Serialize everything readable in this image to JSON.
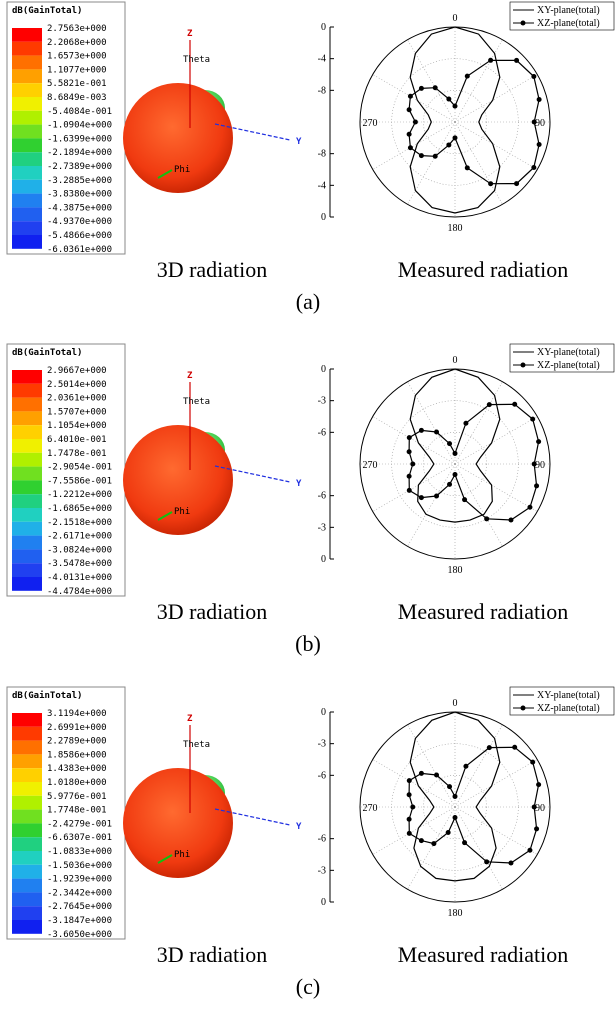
{
  "panels": [
    {
      "label": "(a)",
      "captions": [
        "3D radiation",
        "Measured radiation"
      ],
      "colorbar": {
        "title": "dB(GainTotal)",
        "labels": [
          "2.7563e+000",
          "2.2068e+000",
          "1.6573e+000",
          "1.1077e+000",
          "5.5821e-001",
          "8.6849e-003",
          "-5.4084e-001",
          "-1.0904e+000",
          "-1.6399e+000",
          "-2.1894e+000",
          "-2.7389e+000",
          "-3.2885e+000",
          "-3.8380e+000",
          "-4.3875e+000",
          "-4.9370e+000",
          "-5.4866e+000",
          "-6.0361e+000"
        ]
      },
      "axes3d": {
        "z": "Z",
        "y": "Y",
        "theta": "Theta",
        "phi": "Phi"
      }
    },
    {
      "label": "(b)",
      "captions": [
        "3D radiation",
        "Measured radiation"
      ],
      "colorbar": {
        "title": "dB(GainTotal)",
        "labels": [
          "2.9667e+000",
          "2.5014e+000",
          "2.0361e+000",
          "1.5707e+000",
          "1.1054e+000",
          "6.4010e-001",
          "1.7478e-001",
          "-2.9054e-001",
          "-7.5586e-001",
          "-1.2212e+000",
          "-1.6865e+000",
          "-2.1518e+000",
          "-2.6171e+000",
          "-3.0824e+000",
          "-3.5478e+000",
          "-4.0131e+000",
          "-4.4784e+000"
        ]
      },
      "axes3d": {
        "z": "Z",
        "y": "Y",
        "theta": "Theta",
        "phi": "Phi"
      }
    },
    {
      "label": "(c)",
      "captions": [
        "3D radiation",
        "Measured radiation"
      ],
      "colorbar": {
        "title": "dB(GainTotal)",
        "labels": [
          "3.1194e+000",
          "2.6991e+000",
          "2.2789e+000",
          "1.8586e+000",
          "1.4383e+000",
          "1.0180e+000",
          "5.9776e-001",
          "1.7748e-001",
          "-2.4279e-001",
          "-6.6307e-001",
          "-1.0833e+000",
          "-1.5036e+000",
          "-1.9239e+000",
          "-2.3442e+000",
          "-2.7645e+000",
          "-3.1847e+000",
          "-3.6050e+000"
        ]
      },
      "axes3d": {
        "z": "Z",
        "y": "Y",
        "theta": "Theta",
        "phi": "Phi"
      }
    }
  ],
  "chart_data": [
    {
      "type": "polar",
      "theta": [
        0,
        15,
        30,
        45,
        60,
        75,
        90,
        105,
        120,
        135,
        150,
        165,
        180,
        195,
        210,
        225,
        240,
        255,
        270,
        285,
        300,
        315,
        330,
        345
      ],
      "rlim": [
        -12,
        0
      ],
      "rticks": [
        0,
        -4,
        -8
      ],
      "angle_ticks": [
        0,
        90,
        180,
        270
      ],
      "series": [
        {
          "name": "XY-plane(total)",
          "color": "#000000",
          "markers": false,
          "values": [
            0,
            -0.5,
            -2,
            -4,
            -6.5,
            -8.5,
            -9,
            -8.5,
            -6.5,
            -4,
            -2,
            -0.8,
            -0.5,
            -0.8,
            -2,
            -4,
            -6.5,
            -8.5,
            -9,
            -8.5,
            -6.5,
            -4,
            -2,
            -0.5
          ]
        },
        {
          "name": "XZ-plane(total)",
          "color": "#000000",
          "markers": true,
          "values": [
            -10,
            -6,
            -3,
            -1,
            -0.5,
            -1,
            -2,
            -1,
            -0.5,
            -1,
            -3,
            -6,
            -10,
            -9,
            -7,
            -6,
            -5.5,
            -6,
            -7,
            -6,
            -5.5,
            -6,
            -7,
            -9
          ]
        }
      ]
    },
    {
      "type": "polar",
      "theta": [
        0,
        15,
        30,
        45,
        60,
        75,
        90,
        105,
        120,
        135,
        150,
        165,
        180,
        195,
        210,
        225,
        240,
        255,
        270,
        285,
        300,
        315,
        330,
        345
      ],
      "rlim": [
        -9,
        0
      ],
      "rticks": [
        0,
        -3,
        -6
      ],
      "angle_ticks": [
        0,
        90,
        180,
        270
      ],
      "series": [
        {
          "name": "XY-plane(total)",
          "color": "#000000",
          "markers": false,
          "values": [
            0,
            -0.5,
            -1.5,
            -3,
            -5,
            -6.5,
            -7,
            -6.5,
            -5,
            -4,
            -3.5,
            -3.5,
            -3.5,
            -3.5,
            -3.5,
            -4,
            -5,
            -6.5,
            -7,
            -6.5,
            -5,
            -3,
            -1.5,
            -0.5
          ]
        },
        {
          "name": "XZ-plane(total)",
          "color": "#000000",
          "markers": true,
          "values": [
            -8,
            -5,
            -2.5,
            -1,
            -0.5,
            -0.8,
            -1.5,
            -1,
            -0.8,
            -1.5,
            -3,
            -5.5,
            -8,
            -7,
            -5.5,
            -4.5,
            -4,
            -4.5,
            -5,
            -4.5,
            -4,
            -4.5,
            -5.5,
            -7
          ]
        }
      ]
    },
    {
      "type": "polar",
      "theta": [
        0,
        15,
        30,
        45,
        60,
        75,
        90,
        105,
        120,
        135,
        150,
        165,
        180,
        195,
        210,
        225,
        240,
        255,
        270,
        285,
        300,
        315,
        330,
        345
      ],
      "rlim": [
        -9,
        0
      ],
      "rticks": [
        0,
        -3,
        -6
      ],
      "angle_ticks": [
        0,
        90,
        180,
        270
      ],
      "series": [
        {
          "name": "XY-plane(total)",
          "color": "#000000",
          "markers": false,
          "values": [
            0,
            -0.5,
            -1.5,
            -3,
            -5,
            -6.5,
            -7,
            -6.5,
            -5,
            -3.5,
            -2.5,
            -2,
            -2,
            -2,
            -2.5,
            -3.5,
            -5,
            -6.5,
            -7,
            -6.5,
            -5,
            -3,
            -1.5,
            -0.5
          ]
        },
        {
          "name": "XZ-plane(total)",
          "color": "#000000",
          "markers": true,
          "values": [
            -8,
            -5,
            -2.5,
            -1,
            -0.5,
            -0.8,
            -1.5,
            -1,
            -0.8,
            -1.5,
            -3,
            -5.5,
            -8,
            -6.5,
            -5,
            -4.5,
            -4,
            -4.5,
            -5,
            -4.5,
            -4,
            -4.5,
            -5.5,
            -7
          ]
        }
      ]
    }
  ]
}
